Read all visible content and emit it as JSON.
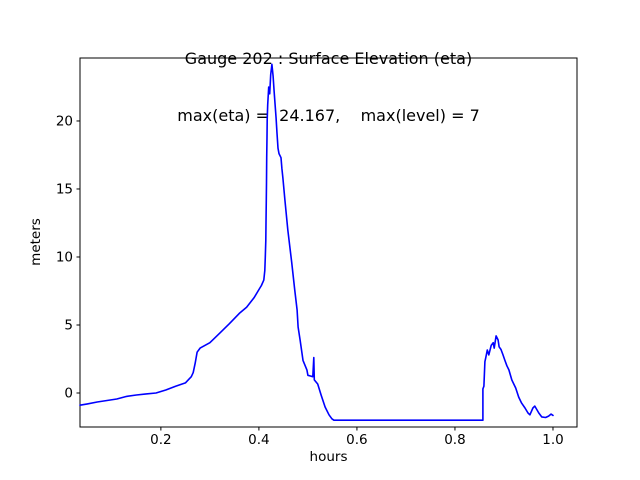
{
  "figure": {
    "title_line1": "Gauge 202 : Surface Elevation (eta)",
    "title_line2": "max(eta) =  24.167,    max(level) = 7",
    "xlabel": "hours",
    "ylabel": "meters",
    "background_color": "#ffffff",
    "spine_color": "#000000",
    "line_color": "#0000ff"
  },
  "chart_data": {
    "type": "line",
    "title": "Gauge 202 : Surface Elevation (eta)",
    "subtitle": "max(eta) =  24.167,    max(level) = 7",
    "xlabel": "hours",
    "ylabel": "meters",
    "xlim": [
      0.035,
      1.049
    ],
    "ylim": [
      -2.5,
      24.63
    ],
    "xticks": [
      0.2,
      0.4,
      0.6,
      0.8,
      1.0
    ],
    "xtick_labels": [
      "0.2",
      "0.4",
      "0.6",
      "0.8",
      "1.0"
    ],
    "yticks": [
      0,
      5,
      10,
      15,
      20
    ],
    "ytick_labels": [
      "0",
      "5",
      "10",
      "15",
      "20"
    ],
    "grid": false,
    "legend": null,
    "max_eta": 24.167,
    "max_level": 7,
    "series": [
      {
        "name": "eta",
        "color": "#0000ff",
        "points": [
          [
            0.035,
            -0.9
          ],
          [
            0.05,
            -0.8
          ],
          [
            0.07,
            -0.66
          ],
          [
            0.09,
            -0.55
          ],
          [
            0.11,
            -0.44
          ],
          [
            0.13,
            -0.25
          ],
          [
            0.15,
            -0.15
          ],
          [
            0.17,
            -0.07
          ],
          [
            0.19,
            0.0
          ],
          [
            0.21,
            0.22
          ],
          [
            0.23,
            0.5
          ],
          [
            0.25,
            0.74
          ],
          [
            0.262,
            1.2
          ],
          [
            0.266,
            1.5
          ],
          [
            0.27,
            2.2
          ],
          [
            0.274,
            3.0
          ],
          [
            0.28,
            3.3
          ],
          [
            0.3,
            3.7
          ],
          [
            0.32,
            4.4
          ],
          [
            0.34,
            5.1
          ],
          [
            0.36,
            5.85
          ],
          [
            0.375,
            6.3
          ],
          [
            0.39,
            7.0
          ],
          [
            0.4,
            7.6
          ],
          [
            0.405,
            7.9
          ],
          [
            0.41,
            8.3
          ],
          [
            0.412,
            9.0
          ],
          [
            0.413,
            10.0
          ],
          [
            0.414,
            11.2
          ],
          [
            0.4145,
            12.5
          ],
          [
            0.415,
            14.2
          ],
          [
            0.4155,
            15.5
          ],
          [
            0.416,
            17.3
          ],
          [
            0.4165,
            18.8
          ],
          [
            0.417,
            20.1
          ],
          [
            0.418,
            21.2
          ],
          [
            0.42,
            22.5
          ],
          [
            0.422,
            22.0
          ],
          [
            0.424,
            23.4
          ],
          [
            0.4265,
            24.167
          ],
          [
            0.429,
            23.3
          ],
          [
            0.431,
            22.2
          ],
          [
            0.433,
            21.2
          ],
          [
            0.435,
            20.2
          ],
          [
            0.437,
            19.1
          ],
          [
            0.439,
            18.0
          ],
          [
            0.441,
            17.6
          ],
          [
            0.445,
            17.3
          ],
          [
            0.447,
            16.5
          ],
          [
            0.449,
            15.8
          ],
          [
            0.453,
            14.2
          ],
          [
            0.459,
            12.0
          ],
          [
            0.467,
            9.6
          ],
          [
            0.473,
            7.6
          ],
          [
            0.478,
            6.1
          ],
          [
            0.48,
            4.85
          ],
          [
            0.484,
            3.9
          ],
          [
            0.49,
            2.4
          ],
          [
            0.498,
            1.7
          ],
          [
            0.5,
            1.3
          ],
          [
            0.505,
            1.25
          ],
          [
            0.51,
            1.2
          ],
          [
            0.512,
            2.6
          ],
          [
            0.513,
            0.96
          ],
          [
            0.52,
            0.66
          ],
          [
            0.527,
            -0.15
          ],
          [
            0.535,
            -1.03
          ],
          [
            0.543,
            -1.6
          ],
          [
            0.549,
            -1.9
          ],
          [
            0.553,
            -2.0
          ],
          [
            0.6,
            -2.0
          ],
          [
            0.65,
            -2.0
          ],
          [
            0.7,
            -2.0
          ],
          [
            0.75,
            -2.0
          ],
          [
            0.8,
            -2.0
          ],
          [
            0.845,
            -2.0
          ],
          [
            0.857,
            -2.0
          ],
          [
            0.857,
            0.3
          ],
          [
            0.859,
            0.5
          ],
          [
            0.861,
            2.3
          ],
          [
            0.863,
            2.6
          ],
          [
            0.866,
            3.16
          ],
          [
            0.869,
            2.8
          ],
          [
            0.874,
            3.5
          ],
          [
            0.878,
            3.7
          ],
          [
            0.88,
            3.3
          ],
          [
            0.884,
            4.2
          ],
          [
            0.888,
            3.9
          ],
          [
            0.89,
            3.4
          ],
          [
            0.894,
            3.2
          ],
          [
            0.898,
            2.8
          ],
          [
            0.902,
            2.4
          ],
          [
            0.906,
            2.0
          ],
          [
            0.91,
            1.7
          ],
          [
            0.916,
            0.96
          ],
          [
            0.924,
            0.37
          ],
          [
            0.93,
            -0.3
          ],
          [
            0.936,
            -0.74
          ],
          [
            0.943,
            -1.1
          ],
          [
            0.949,
            -1.47
          ],
          [
            0.953,
            -1.6
          ],
          [
            0.959,
            -1.1
          ],
          [
            0.963,
            -0.96
          ],
          [
            0.971,
            -1.47
          ],
          [
            0.977,
            -1.76
          ],
          [
            0.985,
            -1.8
          ],
          [
            0.991,
            -1.7
          ],
          [
            0.996,
            -1.55
          ],
          [
            1.0,
            -1.65
          ]
        ]
      }
    ]
  }
}
